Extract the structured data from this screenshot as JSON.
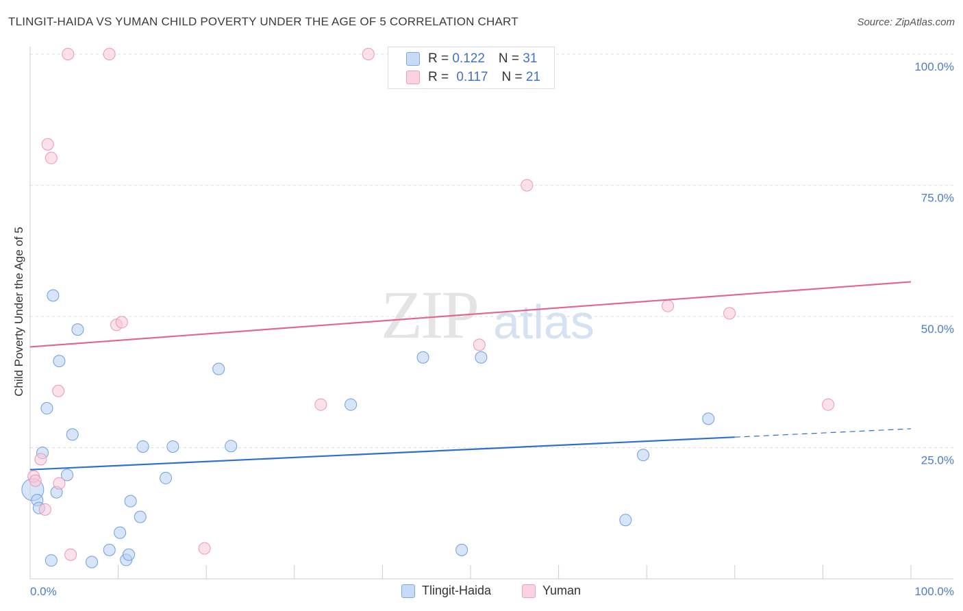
{
  "title": "TLINGIT-HAIDA VS YUMAN CHILD POVERTY UNDER THE AGE OF 5 CORRELATION CHART",
  "source": "Source: ZipAtlas.com",
  "watermark": {
    "zip": "ZIP",
    "atlas": "atlas"
  },
  "legend": {
    "rows": [
      {
        "r_label": "R = ",
        "r_value": "0.122",
        "n_label": "N = ",
        "n_value": "31",
        "color": "#a8c6f0"
      },
      {
        "r_label": "R = ",
        "r_value": "0.117",
        "n_label": "N = ",
        "n_value": "21",
        "color": "#f5b3c8"
      }
    ]
  },
  "chart_data": {
    "type": "scatter",
    "title": "TLINGIT-HAIDA VS YUMAN CHILD POVERTY UNDER THE AGE OF 5 CORRELATION CHART",
    "xlabel": "",
    "ylabel": "Child Poverty Under the Age of 5",
    "xlim": [
      0,
      100
    ],
    "ylim": [
      0,
      100
    ],
    "x_tick_labels": [
      "0.0%",
      "100.0%"
    ],
    "y_ticks": [
      25,
      50,
      75,
      100
    ],
    "y_tick_labels": [
      "25.0%",
      "50.0%",
      "75.0%",
      "100.0%"
    ],
    "grid": true,
    "legend_position": "top-center",
    "series": [
      {
        "name": "Tlingit-Haida",
        "color": "#6d9fe0",
        "fill": "#b8d0f3",
        "trend": {
          "x_start": 0,
          "y_start": 20.8,
          "x_solid_end": 80,
          "y_solid_end": 27.0,
          "x_end": 100,
          "y_end": 28.6,
          "color": "#2e6fcf"
        },
        "points": [
          {
            "x": 0.3,
            "y": 17.0,
            "big": true
          },
          {
            "x": 0.8,
            "y": 15.0
          },
          {
            "x": 1.0,
            "y": 13.5
          },
          {
            "x": 1.4,
            "y": 24.0
          },
          {
            "x": 1.9,
            "y": 32.5
          },
          {
            "x": 2.4,
            "y": 3.5
          },
          {
            "x": 2.6,
            "y": 54.0
          },
          {
            "x": 3.0,
            "y": 16.5
          },
          {
            "x": 3.3,
            "y": 41.5
          },
          {
            "x": 4.2,
            "y": 19.8
          },
          {
            "x": 4.8,
            "y": 27.5
          },
          {
            "x": 5.4,
            "y": 47.5
          },
          {
            "x": 7.0,
            "y": 3.2
          },
          {
            "x": 9.0,
            "y": 5.5
          },
          {
            "x": 10.2,
            "y": 8.8
          },
          {
            "x": 10.9,
            "y": 3.6
          },
          {
            "x": 11.2,
            "y": 4.6
          },
          {
            "x": 11.4,
            "y": 14.8
          },
          {
            "x": 12.5,
            "y": 11.8
          },
          {
            "x": 12.8,
            "y": 25.2
          },
          {
            "x": 15.4,
            "y": 19.2
          },
          {
            "x": 16.2,
            "y": 25.2
          },
          {
            "x": 21.4,
            "y": 40.0
          },
          {
            "x": 22.8,
            "y": 25.3
          },
          {
            "x": 36.4,
            "y": 33.2
          },
          {
            "x": 44.6,
            "y": 42.2
          },
          {
            "x": 49.0,
            "y": 5.5
          },
          {
            "x": 51.2,
            "y": 42.2
          },
          {
            "x": 67.6,
            "y": 11.2
          },
          {
            "x": 69.6,
            "y": 23.6
          },
          {
            "x": 77.0,
            "y": 30.5
          }
        ]
      },
      {
        "name": "Yuman",
        "color": "#ec96b4",
        "fill": "#f8c9d8",
        "trend": {
          "x_start": 0,
          "y_start": 44.2,
          "x_solid_end": 100,
          "y_solid_end": 56.6,
          "x_end": 100,
          "y_end": 56.6,
          "color": "#e2668f"
        },
        "points": [
          {
            "x": 0.4,
            "y": 19.5
          },
          {
            "x": 0.6,
            "y": 18.7
          },
          {
            "x": 1.2,
            "y": 22.8
          },
          {
            "x": 1.7,
            "y": 13.2
          },
          {
            "x": 2.0,
            "y": 82.8
          },
          {
            "x": 2.4,
            "y": 80.2
          },
          {
            "x": 3.2,
            "y": 35.8
          },
          {
            "x": 3.3,
            "y": 18.2
          },
          {
            "x": 4.3,
            "y": 100.0
          },
          {
            "x": 4.6,
            "y": 4.6
          },
          {
            "x": 9.0,
            "y": 100.0
          },
          {
            "x": 9.8,
            "y": 48.4
          },
          {
            "x": 10.4,
            "y": 48.9
          },
          {
            "x": 19.8,
            "y": 5.8
          },
          {
            "x": 33.0,
            "y": 33.2
          },
          {
            "x": 38.4,
            "y": 100.0
          },
          {
            "x": 51.0,
            "y": 44.6
          },
          {
            "x": 56.4,
            "y": 75.0
          },
          {
            "x": 72.4,
            "y": 52.0
          },
          {
            "x": 79.4,
            "y": 50.6
          },
          {
            "x": 90.6,
            "y": 33.2
          }
        ]
      }
    ]
  }
}
